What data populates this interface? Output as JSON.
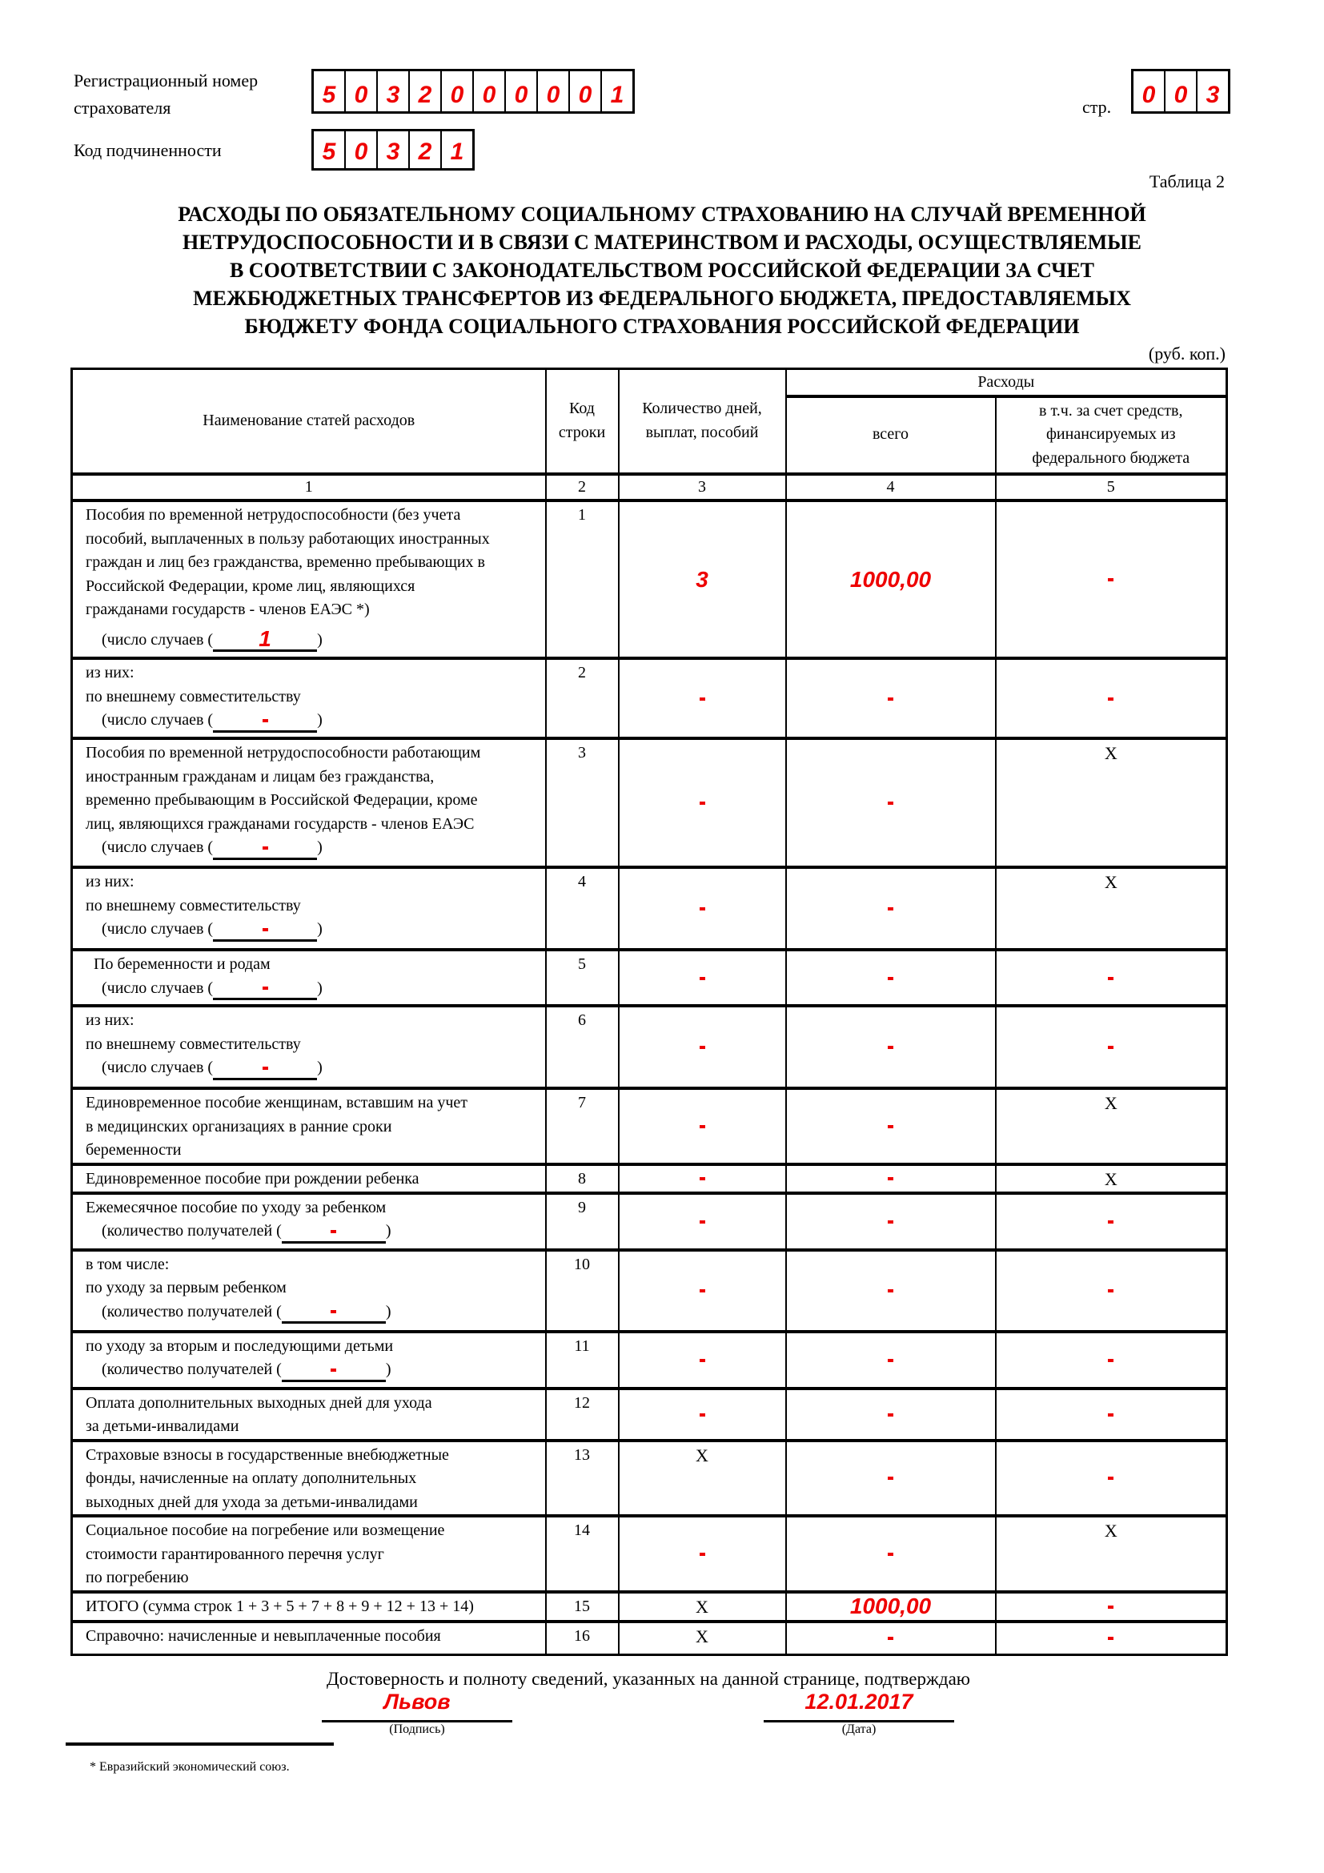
{
  "header": {
    "reg_label_1": "Регистрационный номер",
    "reg_label_2": "страхователя",
    "reg_number": [
      "5",
      "0",
      "3",
      "2",
      "0",
      "0",
      "0",
      "0",
      "0",
      "1"
    ],
    "sub_label": "Код подчиненности",
    "sub_code": [
      "5",
      "0",
      "3",
      "2",
      "1"
    ],
    "page_label": "стр.",
    "page_number": [
      "0",
      "0",
      "3"
    ],
    "table_label": "Таблица 2"
  },
  "title_lines": [
    "РАСХОДЫ ПО ОБЯЗАТЕЛЬНОМУ СОЦИАЛЬНОМУ СТРАХОВАНИЮ НА СЛУЧАЙ ВРЕМЕННОЙ",
    "НЕТРУДОСПОСОБНОСТИ И В СВЯЗИ С МАТЕРИНСТВОМ И РАСХОДЫ, ОСУЩЕСТВЛЯЕМЫЕ",
    "В СООТВЕТСТВИИ С ЗАКОНОДАТЕЛЬСТВОМ РОССИЙСКОЙ ФЕДЕРАЦИИ ЗА СЧЕТ",
    "МЕЖБЮДЖЕТНЫХ ТРАНСФЕРТОВ ИЗ ФЕДЕРАЛЬНОГО БЮДЖЕТА, ПРЕДОСТАВЛЯЕМЫХ",
    "БЮДЖЕТУ ФОНДА СОЦИАЛЬНОГО СТРАХОВАНИЯ РОССИЙСКОЙ ФЕДЕРАЦИИ"
  ],
  "units": "(руб. коп.)",
  "table": {
    "headers": {
      "name": "Наименование статей расходов",
      "code": [
        "Код",
        "строки"
      ],
      "count": [
        "Количество дней,",
        "выплат, пособий"
      ],
      "expenses": "Расходы",
      "total": "всего",
      "federal": [
        "в т.ч. за счет средств,",
        "финансируемых из",
        "федерального бюджета"
      ]
    },
    "col_numbers": [
      "1",
      "2",
      "3",
      "4",
      "5"
    ],
    "rows": [
      {
        "lines": [
          "Пособия по временной нетрудоспособности (без учета",
          "пособий, выплаченных в пользу работающих иностранных",
          "граждан и лиц без гражданства, временно пребывающих в",
          "Российской Федерации, кроме лиц, являющихся",
          "гражданами государств - членов ЕАЭС *)"
        ],
        "cases_label": "(число случаев (",
        "cases": "1",
        "code": "1",
        "c3": "3",
        "c4": "1000,00",
        "c5": "-"
      },
      {
        "lines": [
          "из них:",
          "по внешнему совместительству"
        ],
        "cases_label": "(число случаев (",
        "cases": "-",
        "code": "2",
        "c3": "-",
        "c4": "-",
        "c5": "-"
      },
      {
        "lines": [
          "Пособия по временной нетрудоспособности работающим",
          "иностранным гражданам и лицам без гражданства,",
          "временно пребывающим в Российской Федерации, кроме",
          "лиц, являющихся гражданами государств - членов ЕАЭС"
        ],
        "cases_label": "(число случаев (",
        "cases": "-",
        "code": "3",
        "c3": "-",
        "c4": "-",
        "c5": "X"
      },
      {
        "lines": [
          "из них:",
          "по внешнему совместительству"
        ],
        "cases_label": "(число случаев (",
        "cases": "-",
        "code": "4",
        "c3": "-",
        "c4": "-",
        "c5": "X"
      },
      {
        "lines": [
          "  По беременности и родам"
        ],
        "cases_label": "(число случаев (",
        "cases": "-",
        "code": "5",
        "c3": "-",
        "c4": "-",
        "c5": "-"
      },
      {
        "lines": [
          "из них:",
          "по внешнему совместительству"
        ],
        "cases_label": "(число случаев (",
        "cases": "-",
        "code": "6",
        "c3": "-",
        "c4": "-",
        "c5": "-"
      },
      {
        "lines": [
          "Единовременное пособие женщинам, вставшим на учет",
          "в медицинских организациях в ранние сроки",
          "беременности"
        ],
        "code": "7",
        "c3": "-",
        "c4": "-",
        "c5": "X"
      },
      {
        "lines": [
          "Единовременное пособие при рождении ребенка"
        ],
        "code": "8",
        "c3": "-",
        "c4": "-",
        "c5": "X"
      },
      {
        "lines": [
          "Ежемесячное пособие по уходу за ребенком"
        ],
        "cases_label": "(количество получателей (",
        "cases": "-",
        "code": "9",
        "c3": "-",
        "c4": "-",
        "c5": "-"
      },
      {
        "lines": [
          "в том числе:",
          "по уходу за первым ребенком"
        ],
        "cases_label": "(количество получателей (",
        "cases": "-",
        "code": "10",
        "c3": "-",
        "c4": "-",
        "c5": "-"
      },
      {
        "lines": [
          "по уходу за вторым и последующими детьми"
        ],
        "cases_label": "(количество получателей (",
        "cases": "-",
        "code": "11",
        "c3": "-",
        "c4": "-",
        "c5": "-"
      },
      {
        "lines": [
          "Оплата дополнительных выходных дней для ухода",
          "за детьми-инвалидами"
        ],
        "code": "12",
        "c3": "-",
        "c4": "-",
        "c5": "-"
      },
      {
        "lines": [
          "Страховые взносы в государственные внебюджетные",
          "фонды, начисленные на оплату дополнительных",
          "выходных дней для ухода за детьми-инвалидами"
        ],
        "code": "13",
        "c3": "X",
        "c4": "-",
        "c5": "-"
      },
      {
        "lines": [
          "Социальное пособие на погребение или возмещение",
          "стоимости гарантированного перечня услуг",
          "по погребению"
        ],
        "code": "14",
        "c3": "-",
        "c4": "-",
        "c5": "X"
      },
      {
        "lines": [
          "ИТОГО (сумма строк 1 + 3 + 5 + 7 + 8 + 9 + 12 + 13 + 14)"
        ],
        "code": "15",
        "c3": "X",
        "c4": "1000,00",
        "c5": "-"
      },
      {
        "lines": [
          "Справочно: начисленные и невыплаченные пособия"
        ],
        "code": "16",
        "c3": "X",
        "c4": "-",
        "c5": "-"
      }
    ]
  },
  "footer": {
    "confirm": "Достоверность и полноту сведений, указанных на данной странице, подтверждаю",
    "signature": "Львов",
    "signature_label": "(Подпись)",
    "date": "12.01.2017",
    "date_label": "(Дата)",
    "footnote": "* Евразийский экономический союз."
  },
  "colors": {
    "filled_value": "#ee0000"
  }
}
